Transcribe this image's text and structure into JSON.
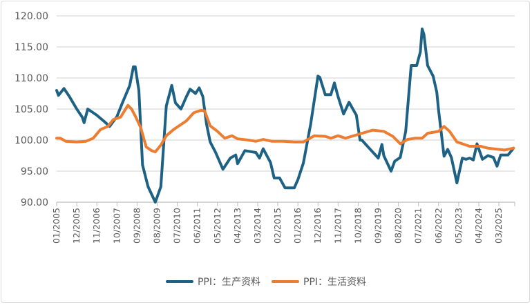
{
  "chart_data": {
    "type": "line",
    "title": "",
    "xlabel": "",
    "ylabel": "",
    "ylim": [
      90,
      120
    ],
    "yticks": [
      "90.00",
      "95.00",
      "100.00",
      "105.00",
      "110.00",
      "115.00",
      "120.00"
    ],
    "xticks": [
      "01/2005",
      "12/2005",
      "11/2006",
      "10/2007",
      "09/2008",
      "08/2009",
      "07/2010",
      "06/2011",
      "05/2012",
      "04/2013",
      "03/2014",
      "02/2015",
      "01/2016",
      "12/2016",
      "11/2017",
      "10/2018",
      "09/2019",
      "08/2020",
      "07/2021",
      "06/2022",
      "05/2023",
      "04/2024",
      "03/2025"
    ],
    "xrange": [
      "2005-01",
      "2025-11"
    ],
    "grid": "horizontal",
    "legend_position": "bottom",
    "series": [
      {
        "name": "PPI：生产资料",
        "color": "#1d6185",
        "points": [
          [
            "2005-01",
            108.0
          ],
          [
            "2005-02",
            107.2
          ],
          [
            "2005-05",
            108.3
          ],
          [
            "2005-08",
            107.0
          ],
          [
            "2005-12",
            105.0
          ],
          [
            "2006-03",
            103.7
          ],
          [
            "2006-04",
            102.8
          ],
          [
            "2006-06",
            105.0
          ],
          [
            "2006-11",
            104.0
          ],
          [
            "2007-03",
            103.0
          ],
          [
            "2007-06",
            102.2
          ],
          [
            "2007-10",
            103.8
          ],
          [
            "2008-01",
            106.0
          ],
          [
            "2008-05",
            108.8
          ],
          [
            "2008-07",
            111.8
          ],
          [
            "2008-08",
            111.8
          ],
          [
            "2008-10",
            108.0
          ],
          [
            "2008-12",
            96.0
          ],
          [
            "2009-03",
            92.5
          ],
          [
            "2009-07",
            90.0
          ],
          [
            "2009-10",
            92.5
          ],
          [
            "2010-01",
            105.5
          ],
          [
            "2010-04",
            108.8
          ],
          [
            "2010-06",
            106.0
          ],
          [
            "2010-09",
            105.0
          ],
          [
            "2010-12",
            107.0
          ],
          [
            "2011-02",
            108.2
          ],
          [
            "2011-05",
            107.5
          ],
          [
            "2011-07",
            108.4
          ],
          [
            "2011-09",
            107.0
          ],
          [
            "2011-11",
            102.6
          ],
          [
            "2012-01",
            99.7
          ],
          [
            "2012-04",
            98.0
          ],
          [
            "2012-08",
            95.3
          ],
          [
            "2012-12",
            97.1
          ],
          [
            "2013-03",
            97.6
          ],
          [
            "2013-04",
            96.2
          ],
          [
            "2013-08",
            98.3
          ],
          [
            "2014-02",
            98.0
          ],
          [
            "2014-04",
            97.1
          ],
          [
            "2014-06",
            98.6
          ],
          [
            "2014-10",
            96.4
          ],
          [
            "2014-12",
            93.9
          ],
          [
            "2015-03",
            93.9
          ],
          [
            "2015-06",
            92.3
          ],
          [
            "2015-11",
            92.3
          ],
          [
            "2016-01",
            93.6
          ],
          [
            "2016-04",
            96.3
          ],
          [
            "2016-08",
            102.6
          ],
          [
            "2016-12",
            110.3
          ],
          [
            "2017-01",
            110.1
          ],
          [
            "2017-04",
            107.3
          ],
          [
            "2017-07",
            107.3
          ],
          [
            "2017-09",
            109.2
          ],
          [
            "2017-11",
            107.0
          ],
          [
            "2018-02",
            104.2
          ],
          [
            "2018-05",
            106.1
          ],
          [
            "2018-09",
            104.0
          ],
          [
            "2018-11",
            100.0
          ],
          [
            "2018-12",
            100.0
          ],
          [
            "2019-04",
            98.7
          ],
          [
            "2019-09",
            97.1
          ],
          [
            "2019-11",
            99.3
          ],
          [
            "2019-12",
            97.5
          ],
          [
            "2020-04",
            95.0
          ],
          [
            "2020-06",
            96.6
          ],
          [
            "2020-09",
            97.2
          ],
          [
            "2020-12",
            101.4
          ],
          [
            "2021-03",
            112.0
          ],
          [
            "2021-06",
            112.0
          ],
          [
            "2021-08",
            114.2
          ],
          [
            "2021-09",
            117.9
          ],
          [
            "2021-10",
            117.0
          ],
          [
            "2021-12",
            112.0
          ],
          [
            "2022-03",
            110.3
          ],
          [
            "2022-05",
            107.7
          ],
          [
            "2022-06",
            104.8
          ],
          [
            "2022-09",
            97.4
          ],
          [
            "2022-11",
            98.5
          ],
          [
            "2023-01",
            97.2
          ],
          [
            "2023-04",
            93.1
          ],
          [
            "2023-07",
            97.1
          ],
          [
            "2023-09",
            96.9
          ],
          [
            "2023-11",
            97.1
          ],
          [
            "2024-01",
            96.8
          ],
          [
            "2024-03",
            99.4
          ],
          [
            "2024-06",
            96.9
          ],
          [
            "2024-09",
            97.5
          ],
          [
            "2024-12",
            97.2
          ],
          [
            "2025-02",
            95.8
          ],
          [
            "2025-04",
            97.6
          ],
          [
            "2025-08",
            97.6
          ],
          [
            "2025-11",
            98.7
          ]
        ]
      },
      {
        "name": "PPI：生活资料",
        "color": "#ed7d31",
        "points": [
          [
            "2005-01",
            100.3
          ],
          [
            "2005-03",
            100.3
          ],
          [
            "2005-06",
            99.8
          ],
          [
            "2005-12",
            99.7
          ],
          [
            "2006-05",
            99.8
          ],
          [
            "2006-09",
            100.3
          ],
          [
            "2007-01",
            101.7
          ],
          [
            "2007-05",
            102.2
          ],
          [
            "2007-08",
            103.3
          ],
          [
            "2007-12",
            103.7
          ],
          [
            "2008-04",
            105.6
          ],
          [
            "2008-06",
            105.0
          ],
          [
            "2008-08",
            103.9
          ],
          [
            "2008-11",
            102.0
          ],
          [
            "2009-02",
            98.9
          ],
          [
            "2009-05",
            98.3
          ],
          [
            "2009-07",
            98.1
          ],
          [
            "2009-10",
            99.2
          ],
          [
            "2010-01",
            100.7
          ],
          [
            "2010-05",
            101.7
          ],
          [
            "2010-08",
            102.3
          ],
          [
            "2010-12",
            103.1
          ],
          [
            "2011-04",
            104.4
          ],
          [
            "2011-08",
            104.8
          ],
          [
            "2011-10",
            104.7
          ],
          [
            "2012-01",
            102.3
          ],
          [
            "2012-05",
            101.4
          ],
          [
            "2012-09",
            100.3
          ],
          [
            "2013-01",
            100.7
          ],
          [
            "2013-04",
            100.2
          ],
          [
            "2013-10",
            100.0
          ],
          [
            "2014-02",
            99.8
          ],
          [
            "2014-06",
            100.1
          ],
          [
            "2014-11",
            99.8
          ],
          [
            "2015-05",
            99.8
          ],
          [
            "2015-11",
            99.7
          ],
          [
            "2016-04",
            99.7
          ],
          [
            "2016-10",
            100.7
          ],
          [
            "2017-04",
            100.6
          ],
          [
            "2017-07",
            100.3
          ],
          [
            "2017-11",
            100.7
          ],
          [
            "2018-03",
            100.3
          ],
          [
            "2018-11",
            101.0
          ],
          [
            "2019-06",
            101.6
          ],
          [
            "2019-12",
            101.4
          ],
          [
            "2020-05",
            100.6
          ],
          [
            "2020-09",
            99.4
          ],
          [
            "2021-01",
            100.1
          ],
          [
            "2021-05",
            100.3
          ],
          [
            "2021-09",
            100.3
          ],
          [
            "2021-12",
            101.1
          ],
          [
            "2022-06",
            101.4
          ],
          [
            "2022-09",
            102.2
          ],
          [
            "2022-12",
            101.4
          ],
          [
            "2023-04",
            99.7
          ],
          [
            "2023-07",
            99.4
          ],
          [
            "2023-11",
            99.0
          ],
          [
            "2024-05",
            99.0
          ],
          [
            "2024-09",
            98.7
          ],
          [
            "2024-12",
            98.6
          ],
          [
            "2025-06",
            98.4
          ],
          [
            "2025-11",
            98.7
          ]
        ]
      }
    ]
  }
}
